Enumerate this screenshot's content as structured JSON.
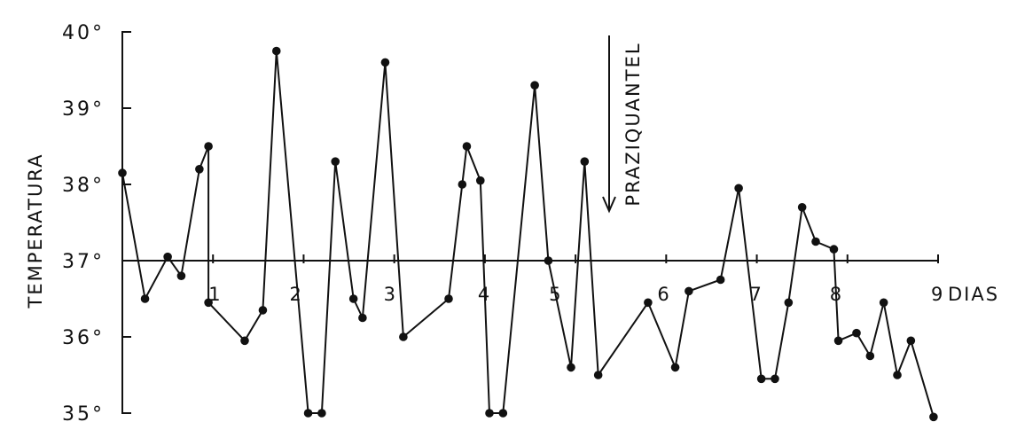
{
  "chart_data": {
    "type": "line",
    "ylabel": "TEMPERATURA",
    "y_ticks": [
      "40°",
      "39°",
      "38°",
      "37°",
      "36°",
      "35°"
    ],
    "y_tick_values": [
      40,
      39,
      38,
      37,
      36,
      35
    ],
    "ylim": [
      35,
      40
    ],
    "x_ticks": [
      "1",
      "2",
      "3",
      "4",
      "5",
      "6",
      "7",
      "8",
      "9"
    ],
    "x_tick_values": [
      1,
      2,
      3,
      4,
      5,
      6,
      7,
      8,
      9
    ],
    "x_unit": "DIAS",
    "xlim": [
      0,
      9
    ],
    "annotation": {
      "text": "PRAZIQUANTEL",
      "x": 5.35,
      "arrow": "down"
    },
    "series": [
      {
        "x": [
          0,
          0.25,
          0.5,
          0.65,
          0.85,
          0.95,
          0.95,
          1.35,
          1.55,
          1.7,
          2.05,
          2.2,
          2.35,
          2.55,
          2.65,
          2.9,
          3.1,
          3.6,
          3.75,
          3.8,
          3.95,
          4.05,
          4.2,
          4.55,
          4.7,
          4.95,
          5.1,
          5.25,
          5.8,
          6.1,
          6.25,
          6.6,
          6.8,
          7.05,
          7.2,
          7.35,
          7.5,
          7.65,
          7.85,
          7.9,
          8.1,
          8.25,
          8.4,
          8.55,
          8.7,
          8.95
        ],
        "y": [
          38.15,
          36.5,
          37.05,
          36.8,
          38.2,
          38.5,
          36.45,
          35.95,
          36.35,
          39.75,
          35.0,
          35.0,
          38.3,
          36.5,
          36.25,
          39.6,
          36.0,
          36.5,
          38.0,
          38.5,
          38.05,
          35.0,
          35.0,
          39.3,
          37.0,
          35.6,
          38.3,
          35.5,
          36.45,
          35.6,
          36.6,
          36.75,
          37.95,
          35.45,
          35.45,
          36.45,
          37.7,
          37.25,
          37.15,
          35.95,
          36.05,
          35.75,
          36.45,
          35.5,
          35.95,
          34.95
        ]
      }
    ]
  }
}
